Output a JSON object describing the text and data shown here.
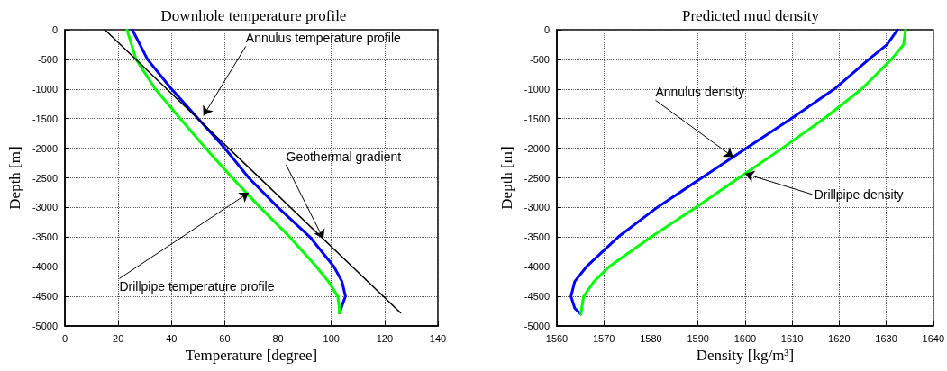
{
  "chart_data": [
    {
      "type": "line",
      "title": "Downhole temperature profile",
      "xlabel": "Temperature [degree]",
      "ylabel": "Depth [m]",
      "xlim": [
        0,
        140
      ],
      "xticks": [
        0,
        20,
        40,
        60,
        80,
        100,
        120,
        140
      ],
      "ylim": [
        -5000,
        0
      ],
      "yticks": [
        -5000,
        -4500,
        -4000,
        -3500,
        -3000,
        -2500,
        -2000,
        -1500,
        -1000,
        -500,
        0
      ],
      "grid": true,
      "marker": "none",
      "series": [
        {
          "color": "#0000ff",
          "x": [
            25.3,
            31,
            40,
            50,
            60,
            69,
            80,
            92,
            101,
            104,
            105.3,
            103.3,
            103
          ],
          "values": [
            0,
            -500,
            -1000,
            -1500,
            -2000,
            -2500,
            -3000,
            -3500,
            -4000,
            -4250,
            -4500,
            -4750,
            -4780
          ]
        },
        {
          "color": "#00ff00",
          "x": [
            23.3,
            26.7,
            33.9,
            43.3,
            52.8,
            62.8,
            73.3,
            84.4,
            94.4,
            98.9,
            102.4,
            103,
            103
          ],
          "values": [
            0,
            -500,
            -1000,
            -1500,
            -2000,
            -2500,
            -3000,
            -3500,
            -4000,
            -4250,
            -4500,
            -4700,
            -4780
          ]
        },
        {
          "color": "#000000",
          "x": [
            15,
            126
          ],
          "values": [
            0,
            -4780
          ]
        }
      ],
      "annotations": [
        {
          "text": "Annulus temperature profile",
          "x": 52,
          "y": -1450
        },
        {
          "text": "Geothermal gradient",
          "x": 97,
          "y": -3530
        },
        {
          "text": "Drillpipe temperature profile",
          "x": 69,
          "y": -2750
        }
      ]
    },
    {
      "type": "line",
      "title": "Predicted mud density",
      "xlabel": "Density [kg/m³]",
      "ylabel": "Depth [m]",
      "xlim": [
        1560,
        1640
      ],
      "xticks": [
        1560,
        1570,
        1580,
        1590,
        1600,
        1610,
        1620,
        1630,
        1640
      ],
      "ylim": [
        -5000,
        0
      ],
      "yticks": [
        -5000,
        -4500,
        -4000,
        -3500,
        -3000,
        -2500,
        -2000,
        -1500,
        -1000,
        -500,
        0
      ],
      "grid": true,
      "marker": "none",
      "series": [
        {
          "color": "#0000ff",
          "x": [
            1632.4,
            1630.2,
            1626.3,
            1619,
            1609.8,
            1600.3,
            1590.8,
            1581.3,
            1573,
            1566.3,
            1563.8,
            1563,
            1563.8,
            1565.1
          ],
          "values": [
            0,
            -250,
            -500,
            -1000,
            -1500,
            -2000,
            -2500,
            -3000,
            -3500,
            -4000,
            -4250,
            -4500,
            -4700,
            -4800
          ]
        },
        {
          "color": "#00ff00",
          "x": [
            1634.1,
            1633.7,
            1631.1,
            1624.8,
            1616.8,
            1607.9,
            1598.7,
            1589.5,
            1580,
            1571.1,
            1567.9,
            1565.7,
            1565.1
          ],
          "values": [
            0,
            -250,
            -500,
            -1000,
            -1500,
            -2000,
            -2500,
            -3000,
            -3500,
            -4000,
            -4250,
            -4500,
            -4800
          ]
        }
      ],
      "annotations": [
        {
          "text": "Annulus density",
          "x": 1597.5,
          "y": -2150
        },
        {
          "text": "Drillpipe density",
          "x": 1600,
          "y": -2430
        }
      ]
    }
  ]
}
